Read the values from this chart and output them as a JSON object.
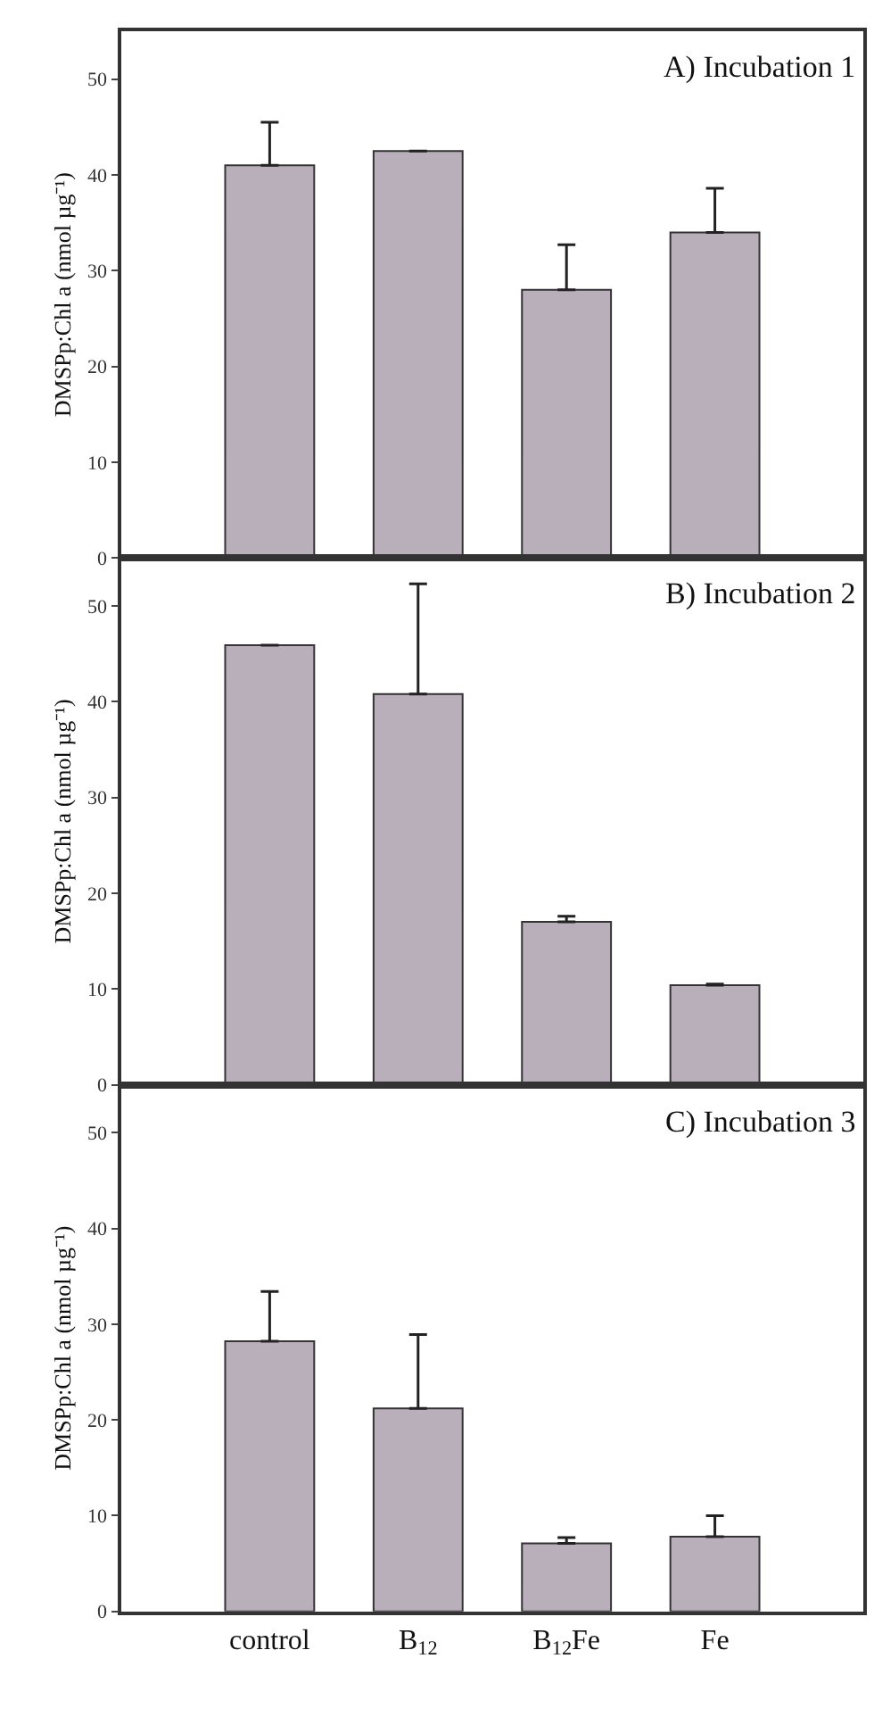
{
  "chart_data": [
    {
      "type": "bar",
      "title": "A) Incubation 1",
      "ylabel": "DMSPp:Chl a (nmol µg⁻¹)",
      "categories": [
        "control",
        "B$_{12}$",
        "B$_{12}$Fe",
        "Fe"
      ],
      "values": [
        41.0,
        42.5,
        28.0,
        34.0
      ],
      "errors": [
        [
          41.0,
          45.5
        ],
        null,
        [
          28.0,
          32.7
        ],
        [
          34.0,
          38.6
        ]
      ],
      "color": "#b9afba",
      "ylim": [
        0,
        55
      ],
      "yticks": [
        0,
        10,
        20,
        30,
        40,
        50
      ],
      "tick_labels": "y",
      "grid": false
    },
    {
      "type": "bar",
      "title": "B) Incubation 2",
      "ylabel": "DMSPp:Chl a (nmol µg⁻¹)",
      "categories": [
        "control",
        "B$_{12}$",
        "B$_{12}$Fe",
        "Fe"
      ],
      "values": [
        45.9,
        40.8,
        17.0,
        10.4
      ],
      "errors": [
        null,
        [
          40.8,
          52.3
        ],
        [
          17.0,
          17.6
        ],
        [
          10.4,
          10.5
        ]
      ],
      "color": "#b9afba",
      "ylim": [
        0,
        55
      ],
      "yticks": [
        0,
        10,
        20,
        30,
        40,
        50
      ],
      "tick_labels": "y",
      "grid": false
    },
    {
      "type": "bar",
      "title": "C) Incubation 3",
      "ylabel": "DMSPp:Chl a (nmol µg⁻¹)",
      "categories": [
        "control",
        "B$_{12}$",
        "B$_{12}$Fe",
        "Fe"
      ],
      "values": [
        28.2,
        21.2,
        7.1,
        7.8
      ],
      "errors": [
        [
          28.2,
          33.4
        ],
        [
          21.2,
          28.9
        ],
        [
          7.1,
          7.7
        ],
        [
          7.8,
          10.0
        ]
      ],
      "color": "#b9afba",
      "ylim": [
        0,
        55
      ],
      "yticks": [
        0,
        10,
        20,
        30,
        40,
        50
      ],
      "grid": false
    }
  ]
}
